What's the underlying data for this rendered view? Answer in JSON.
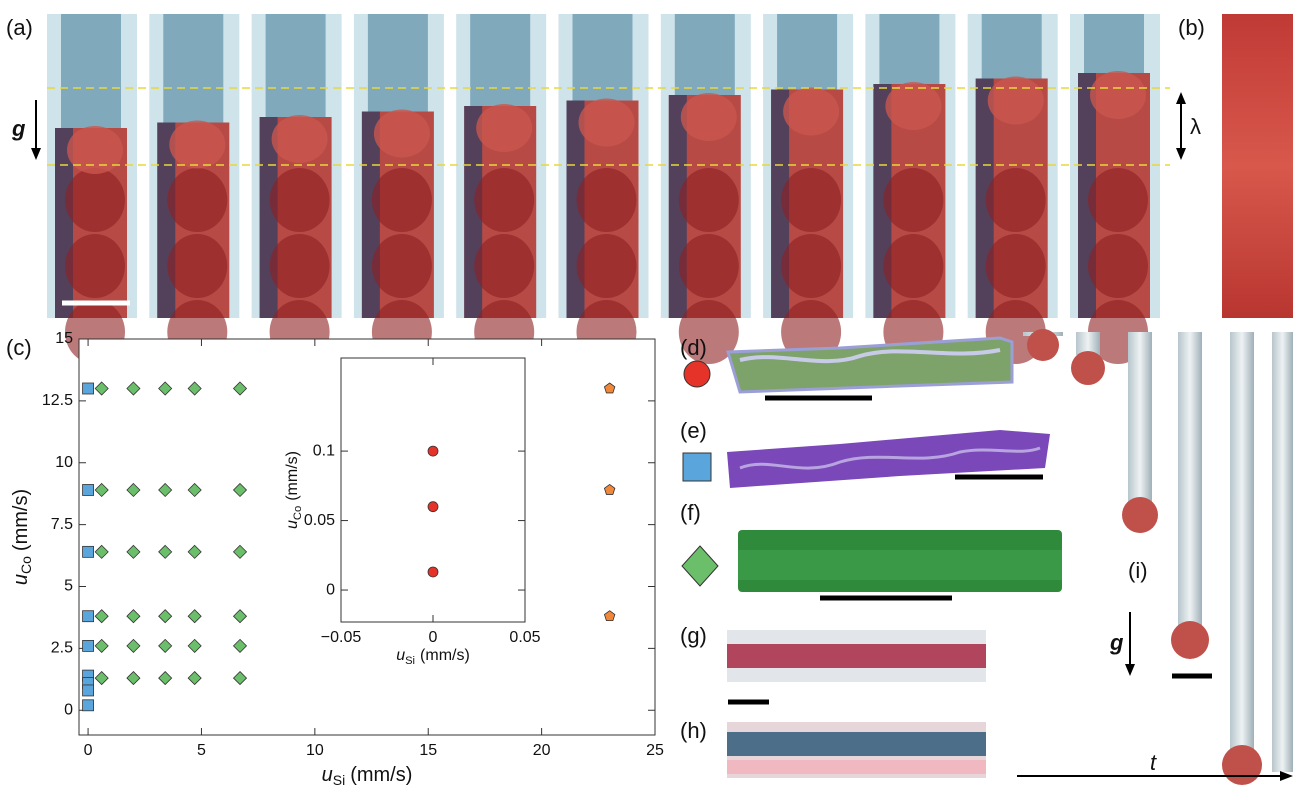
{
  "panel_labels": [
    "(a)",
    "(b)",
    "(c)",
    "(d)",
    "(e)",
    "(f)",
    "(g)",
    "(h)",
    "(i)"
  ],
  "annotations": [
    "g",
    "λ",
    "g",
    "t"
  ],
  "chart_data": [
    {
      "type": "scatter",
      "xlabel": "u",
      "xlabel_sub": "Si",
      "xlabel_unit": "(mm/s)",
      "ylabel": "u",
      "ylabel_sub": "Co",
      "ylabel_unit": "(mm/s)",
      "xlim": [
        -0.4,
        25
      ],
      "ylim": [
        -1,
        15
      ],
      "xticks": [
        0,
        5,
        10,
        15,
        20,
        25
      ],
      "yticks": [
        0,
        2.5,
        5,
        7.5,
        10,
        12.5,
        15
      ],
      "series": [
        {
          "marker": "square",
          "color": "#5aa6dc",
          "x": [
            0,
            0,
            0,
            0,
            0,
            0,
            0,
            0,
            0
          ],
          "values": [
            13,
            8.9,
            6.4,
            3.8,
            2.6,
            1.4,
            1.1,
            0.8,
            0.2
          ]
        },
        {
          "marker": "diamond",
          "color": "#6cbf6a",
          "x": [
            0.6,
            2,
            3.4,
            4.7,
            6.7,
            0.6,
            2,
            3.4,
            4.7,
            6.7,
            0.6,
            2,
            3.4,
            4.7,
            6.7,
            0.6,
            2,
            3.4,
            4.7,
            6.7,
            0.6,
            2,
            3.4,
            4.7,
            6.7,
            0.6,
            2,
            3.4,
            4.7,
            6.7
          ],
          "values": [
            13,
            13,
            13,
            13,
            13,
            8.9,
            8.9,
            8.9,
            8.9,
            8.9,
            6.4,
            6.4,
            6.4,
            6.4,
            6.4,
            3.8,
            3.8,
            3.8,
            3.8,
            3.8,
            2.6,
            2.6,
            2.6,
            2.6,
            2.6,
            1.3,
            1.3,
            1.3,
            1.3,
            1.3
          ]
        },
        {
          "marker": "pentagon",
          "color": "#f0883c",
          "x": [
            23,
            23,
            23
          ],
          "values": [
            13,
            8.9,
            3.8
          ]
        }
      ]
    },
    {
      "type": "scatter",
      "xlabel": "u",
      "xlabel_sub": "Si",
      "xlabel_unit": "(mm/s)",
      "ylabel": "u",
      "ylabel_sub": "Co",
      "ylabel_unit": "(mm/s)",
      "xlim": [
        -0.05,
        0.05
      ],
      "ylim": [
        -0.023,
        0.167
      ],
      "xticks": [
        {
          "value": -0.05,
          "label": "−0.05"
        },
        0,
        0.05
      ],
      "yticks": [
        0,
        0.05,
        0.1
      ],
      "series": [
        {
          "marker": "circle",
          "color": "#e5332a",
          "x": [
            0,
            0,
            0
          ],
          "values": [
            0.1,
            0.06,
            0.013
          ]
        }
      ]
    }
  ]
}
